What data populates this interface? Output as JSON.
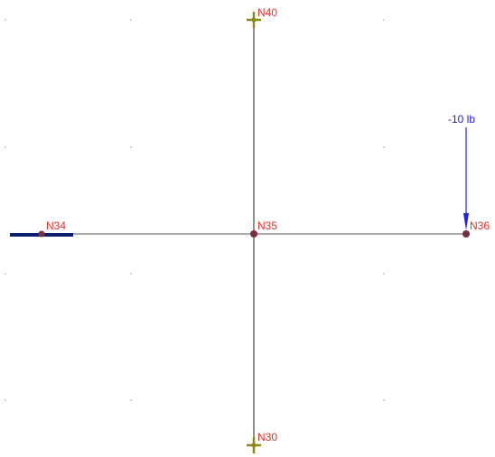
{
  "nodes": {
    "n40": {
      "label": "N40",
      "kind": "support"
    },
    "n34": {
      "label": "N34",
      "kind": "node"
    },
    "n35": {
      "label": "N35",
      "kind": "node"
    },
    "n36": {
      "label": "N36",
      "kind": "node"
    },
    "n30": {
      "label": "N30",
      "kind": "support"
    }
  },
  "load": {
    "label": "-10 lb",
    "direction": "down",
    "at_node": "N36"
  },
  "colors": {
    "member": "#555555",
    "node_fill": "#7a2e3a",
    "node_label": "#e8302a",
    "support": "#8a8a10",
    "load": "#2222e0",
    "fixed_end": "#0b1f6e",
    "grid_dot": "#c8c8c8"
  }
}
